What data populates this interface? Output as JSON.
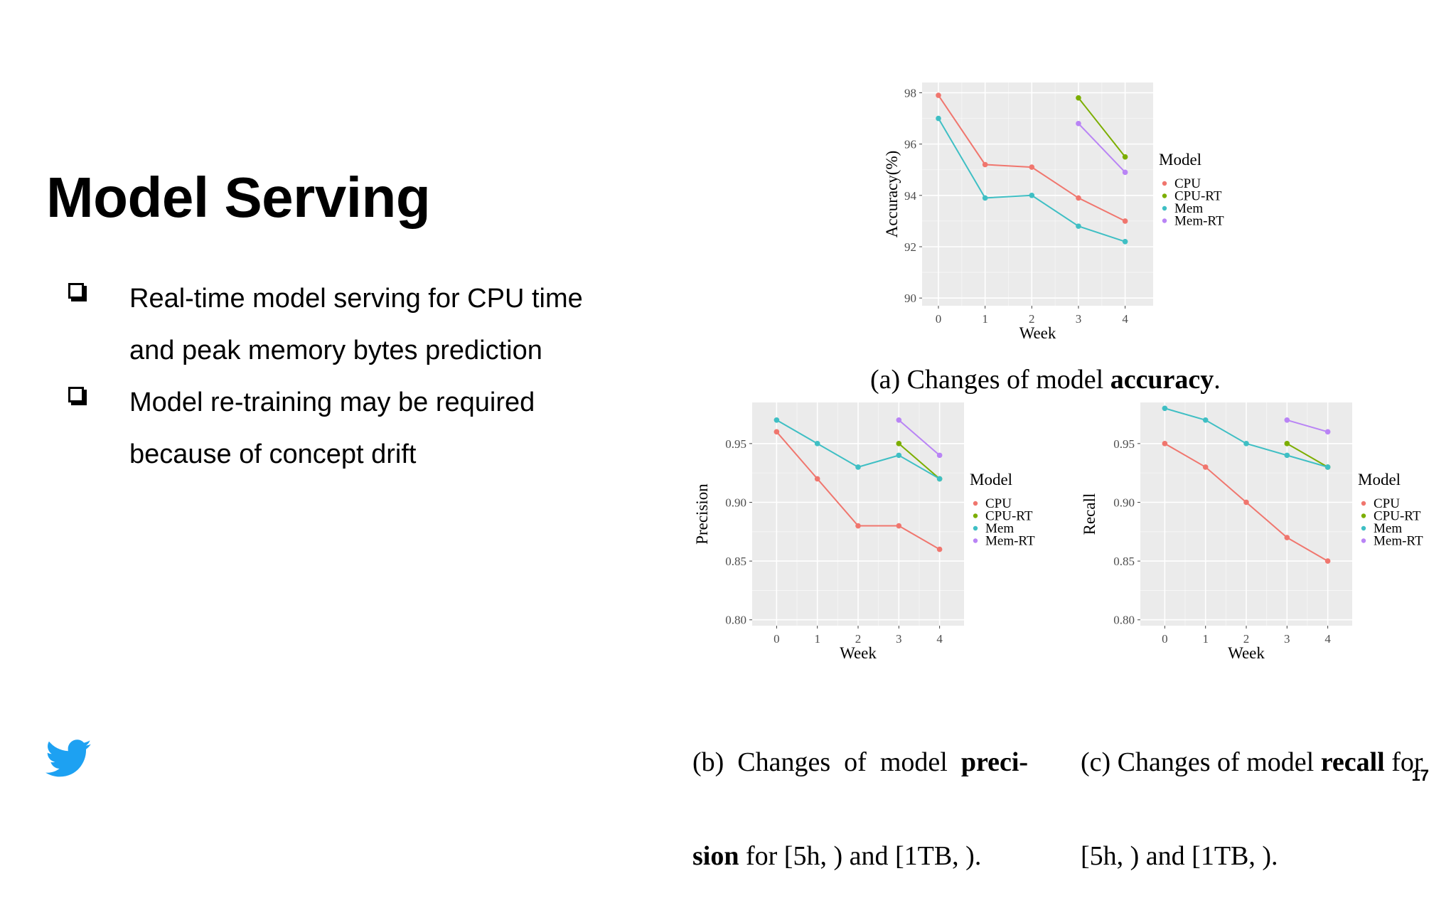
{
  "slide": {
    "title": "Model Serving",
    "page_number": "17",
    "bullets": [
      [
        "Real-time model serving for CPU time",
        "and peak memory bytes prediction"
      ],
      [
        "Model re-training may be required",
        "because of concept drift"
      ]
    ]
  },
  "captions": {
    "a": {
      "pre": "(a) Changes of model ",
      "bold": "accuracy",
      "post": "."
    },
    "b": {
      "l1_pre": "(b)  Changes  of  model  ",
      "l1_bold": "preci-",
      "l2_bold": "sion",
      "l2_post": " for [5h, ) and [1TB, )."
    },
    "c": {
      "l1_pre": "(c) Changes of model ",
      "l1_bold": "recall",
      "l1_post": " for",
      "l2": "[5h, ) and [1TB, )."
    }
  },
  "colors": {
    "CPU": "#F0766E",
    "CPU-RT": "#7CAE00",
    "Mem": "#3FBFC4",
    "Mem-RT": "#B984F5",
    "panel": "#EBEBEB",
    "grid": "#FFFFFF",
    "logo": "#1DA1F2"
  },
  "logo_icon": "twitter-bird-icon",
  "chart_data": [
    {
      "id": "a",
      "type": "line",
      "xlabel": "Week",
      "ylabel": "Accuracy(%)",
      "x": [
        0,
        1,
        2,
        3,
        4
      ],
      "xlim": [
        -0.35,
        4.6
      ],
      "ylim": [
        89.7,
        98.4
      ],
      "yticks": [
        "90",
        "92",
        "94",
        "96",
        "98"
      ],
      "ytick_values": [
        90,
        92,
        94,
        96,
        98
      ],
      "legend_title": "Model",
      "legend": [
        "CPU",
        "CPU-RT",
        "Mem",
        "Mem-RT"
      ],
      "series": [
        {
          "name": "CPU",
          "x": [
            0,
            1,
            2,
            3,
            4
          ],
          "values": [
            97.9,
            95.2,
            95.1,
            93.9,
            93.0
          ]
        },
        {
          "name": "CPU-RT",
          "x": [
            3,
            4
          ],
          "values": [
            97.8,
            95.5
          ]
        },
        {
          "name": "Mem",
          "x": [
            0,
            1,
            2,
            3,
            4
          ],
          "values": [
            97.0,
            93.9,
            94.0,
            92.8,
            92.2
          ]
        },
        {
          "name": "Mem-RT",
          "x": [
            3,
            4
          ],
          "values": [
            96.8,
            94.9
          ]
        }
      ]
    },
    {
      "id": "b",
      "type": "line",
      "xlabel": "Week",
      "ylabel": "Precision",
      "x": [
        0,
        1,
        2,
        3,
        4
      ],
      "xlim": [
        -0.6,
        4.6
      ],
      "ylim": [
        0.795,
        0.985
      ],
      "yticks": [
        "0.80",
        "0.85",
        "0.90",
        "0.95"
      ],
      "ytick_values": [
        0.8,
        0.85,
        0.9,
        0.95
      ],
      "legend_title": "Model",
      "legend": [
        "CPU",
        "CPU-RT",
        "Mem",
        "Mem-RT"
      ],
      "series": [
        {
          "name": "CPU",
          "x": [
            0,
            1,
            2,
            3,
            4
          ],
          "values": [
            0.96,
            0.92,
            0.88,
            0.88,
            0.86
          ]
        },
        {
          "name": "CPU-RT",
          "x": [
            3,
            4
          ],
          "values": [
            0.95,
            0.92
          ]
        },
        {
          "name": "Mem",
          "x": [
            0,
            1,
            2,
            3,
            4
          ],
          "values": [
            0.97,
            0.95,
            0.93,
            0.94,
            0.92
          ]
        },
        {
          "name": "Mem-RT",
          "x": [
            3,
            4
          ],
          "values": [
            0.97,
            0.94
          ]
        }
      ]
    },
    {
      "id": "c",
      "type": "line",
      "xlabel": "Week",
      "ylabel": "Recall",
      "x": [
        0,
        1,
        2,
        3,
        4
      ],
      "xlim": [
        -0.6,
        4.6
      ],
      "ylim": [
        0.795,
        0.985
      ],
      "yticks": [
        "0.80",
        "0.85",
        "0.90",
        "0.95"
      ],
      "ytick_values": [
        0.8,
        0.85,
        0.9,
        0.95
      ],
      "legend_title": "Model",
      "legend": [
        "CPU",
        "CPU-RT",
        "Mem",
        "Mem-RT"
      ],
      "series": [
        {
          "name": "CPU",
          "x": [
            0,
            1,
            2,
            3,
            4
          ],
          "values": [
            0.95,
            0.93,
            0.9,
            0.87,
            0.85
          ]
        },
        {
          "name": "CPU-RT",
          "x": [
            3,
            4
          ],
          "values": [
            0.95,
            0.93
          ]
        },
        {
          "name": "Mem",
          "x": [
            0,
            1,
            2,
            3,
            4
          ],
          "values": [
            0.98,
            0.97,
            0.95,
            0.94,
            0.93
          ]
        },
        {
          "name": "Mem-RT",
          "x": [
            3,
            4
          ],
          "values": [
            0.97,
            0.96
          ]
        }
      ]
    }
  ]
}
